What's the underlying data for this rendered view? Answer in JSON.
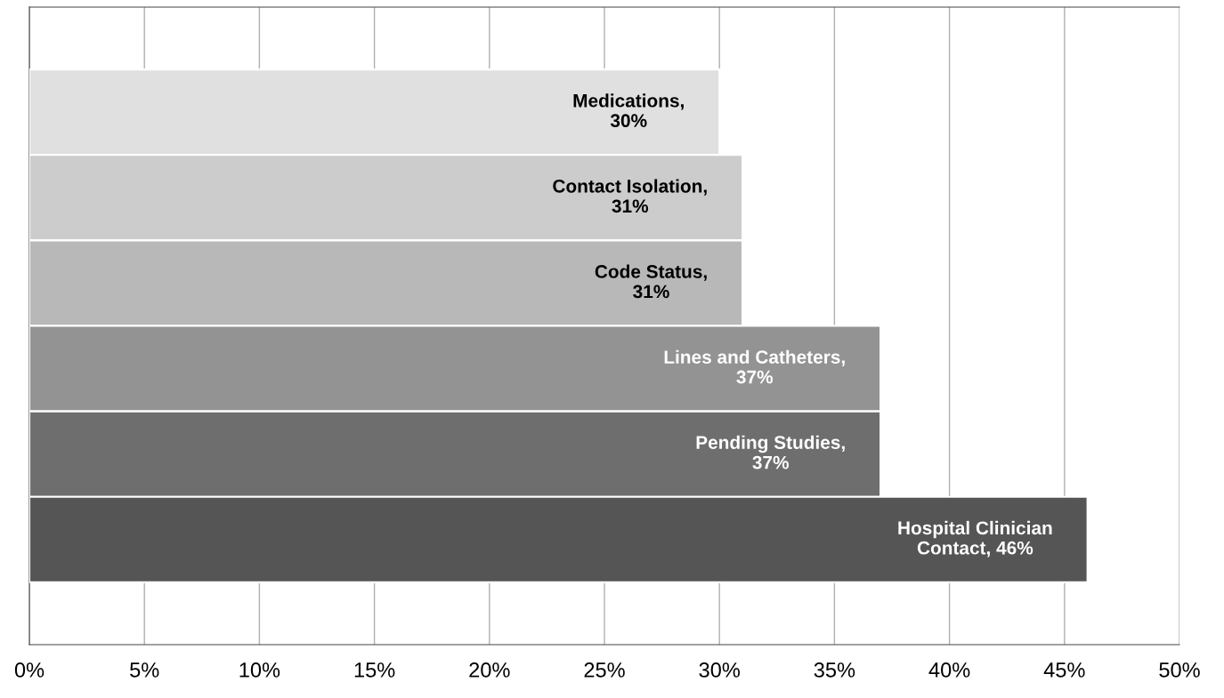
{
  "chart_data": {
    "type": "bar",
    "orientation": "horizontal",
    "categories": [
      null,
      null,
      null,
      null,
      null,
      null
    ],
    "values": [
      30,
      31,
      31,
      37,
      37,
      46
    ],
    "colors": [
      "#e0e0e0",
      "#cccccc",
      "#b8b8b8",
      "#939393",
      "#6e6e6e",
      "#555555"
    ],
    "value_labels": [
      "Medications,\n30%",
      "Contact Isolation,\n31%",
      "Code Status,\n31%",
      "Lines and Catheters,\n37%",
      "Pending Studies,\n37%",
      "Hospital Clinician\nContact, 46%"
    ],
    "xlim": [
      0,
      50
    ],
    "xticks": [
      {
        "value": 0,
        "label": "0%"
      },
      {
        "value": 5,
        "label": "5%"
      },
      {
        "value": 10,
        "label": "10%"
      },
      {
        "value": 15,
        "label": "15%"
      },
      {
        "value": 20,
        "label": "20%"
      },
      {
        "value": 25,
        "label": "25%"
      },
      {
        "value": 30,
        "label": "30%"
      },
      {
        "value": 35,
        "label": "35%"
      },
      {
        "value": 40,
        "label": "40%"
      },
      {
        "value": 45,
        "label": "45%"
      },
      {
        "value": 50,
        "label": "50%"
      }
    ],
    "grid": "x",
    "tick_labels": "x"
  }
}
